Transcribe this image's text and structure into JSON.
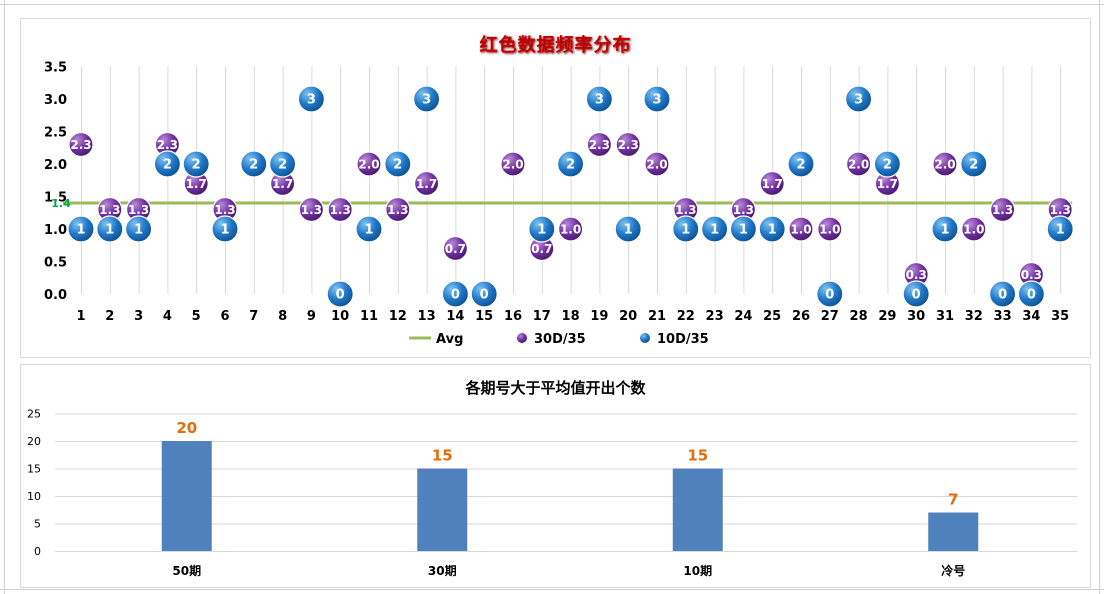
{
  "chart_data": [
    {
      "type": "scatter",
      "title": "红色数据频率分布",
      "x": [
        1,
        2,
        3,
        4,
        5,
        6,
        7,
        8,
        9,
        10,
        11,
        12,
        13,
        14,
        15,
        16,
        17,
        18,
        19,
        20,
        21,
        22,
        23,
        24,
        25,
        26,
        27,
        28,
        29,
        30,
        31,
        32,
        33,
        34,
        35
      ],
      "xticks": [
        "1",
        "2",
        "3",
        "4",
        "5",
        "6",
        "7",
        "8",
        "9",
        "10",
        "11",
        "12",
        "13",
        "14",
        "15",
        "16",
        "17",
        "18",
        "19",
        "20",
        "21",
        "22",
        "23",
        "24",
        "25",
        "26",
        "27",
        "28",
        "29",
        "30",
        "31",
        "32",
        "33",
        "34",
        "35"
      ],
      "ylim": [
        0,
        3.5
      ],
      "yticks": [
        "0.0",
        "0.5",
        "1.0",
        "1.5",
        "2.0",
        "2.5",
        "3.0",
        "3.5"
      ],
      "grid": "vertical",
      "legend_position": "bottom",
      "series": [
        {
          "name": "Avg",
          "kind": "line",
          "color": "#9bbb59",
          "value": 1.4,
          "label": "1.4"
        },
        {
          "name": "30D/35",
          "kind": "marker",
          "color": "#7030a0",
          "values": [
            2.3,
            1.3,
            1.3,
            2.3,
            1.7,
            1.3,
            2.0,
            1.7,
            1.3,
            1.3,
            2.0,
            1.3,
            1.7,
            0.7,
            0,
            2.0,
            0.7,
            1.0,
            2.3,
            2.3,
            2.0,
            1.3,
            1.0,
            1.3,
            1.7,
            1.0,
            1.0,
            2.0,
            1.7,
            0.3,
            2.0,
            1.0,
            1.3,
            0.3,
            1.3
          ],
          "labels": [
            "2.3",
            "1.3",
            "1.3",
            "2.3",
            "1.7",
            "1.3",
            "2.0",
            "1.7",
            "1.3",
            "1.3",
            "2.0",
            "1.3",
            "1.7",
            "0.7",
            "0.0",
            "2.0",
            "0.7",
            "1.0",
            "2.3",
            "2.3",
            "2.0",
            "1.3",
            "1.0",
            "1.3",
            "1.7",
            "1.0",
            "1.0",
            "2.0",
            "1.7",
            "0.3",
            "2.0",
            "1.0",
            "1.3",
            "0.3",
            "1.3"
          ]
        },
        {
          "name": "10D/35",
          "kind": "marker",
          "color": "#1f77c8",
          "values": [
            1,
            1,
            1,
            2,
            2,
            1,
            2,
            2,
            3,
            0,
            1,
            2,
            3,
            0,
            0,
            null,
            1,
            2,
            3,
            1,
            3,
            1,
            1,
            1,
            1,
            2,
            0,
            3,
            2,
            0,
            1,
            2,
            0,
            0,
            1
          ],
          "labels": [
            "1",
            "1",
            "1",
            "2",
            "2",
            "1",
            "2",
            "2",
            "3",
            "0",
            "1",
            "2",
            "3",
            "0",
            "0",
            "",
            "1",
            "2",
            "3",
            "1",
            "3",
            "1",
            "1",
            "1",
            "1",
            "2",
            "0",
            "3",
            "2",
            "0",
            "1",
            "2",
            "0",
            "0",
            "1"
          ]
        }
      ]
    },
    {
      "type": "bar",
      "title": "各期号大于平均值开出个数",
      "categories": [
        "50期",
        "30期",
        "10期",
        "冷号"
      ],
      "values": [
        20,
        15,
        15,
        7
      ],
      "value_labels": [
        "20",
        "15",
        "15",
        "7"
      ],
      "ylim": [
        0,
        25
      ],
      "yticks": [
        "0",
        "5",
        "10",
        "15",
        "20",
        "25"
      ],
      "bar_color": "#4f81bd",
      "label_color": "#e46c0a",
      "grid": "horizontal"
    }
  ]
}
